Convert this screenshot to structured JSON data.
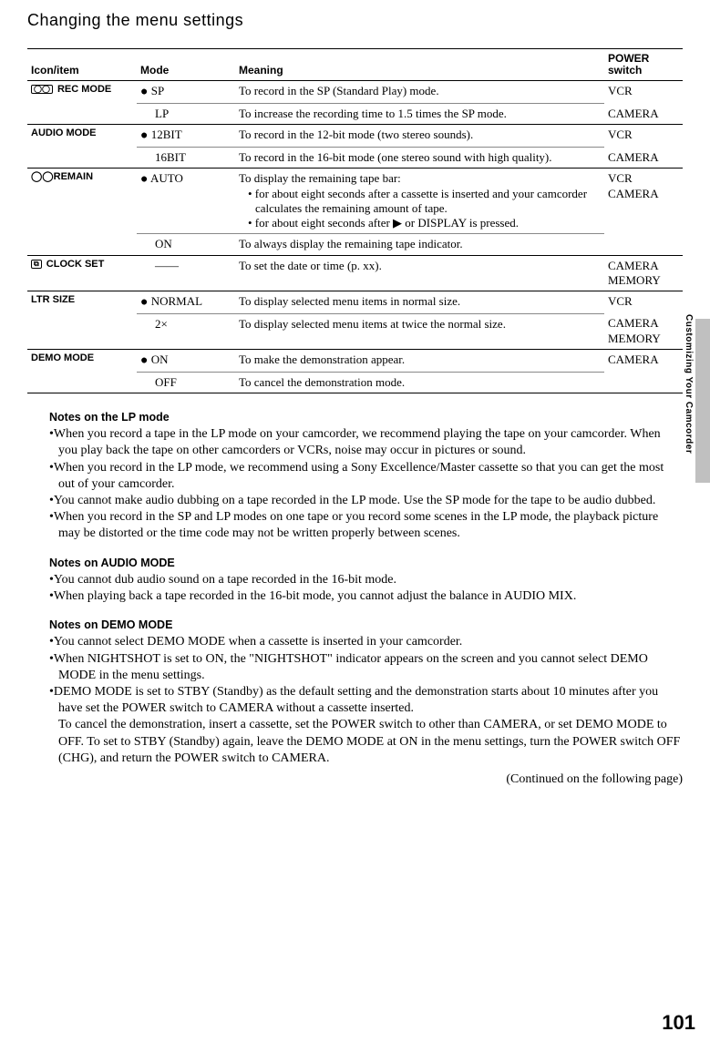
{
  "pageTitle": "Changing the menu settings",
  "sideText": "Customizing Your Camcorder",
  "pageNumber": "101",
  "continued": "(Continued on the following page)",
  "headers": {
    "iconItem": "Icon/item",
    "mode": "Mode",
    "meaning": "Meaning",
    "power1": "POWER",
    "power2": "switch"
  },
  "rows": [
    {
      "item": "REC MODE",
      "icon": "◯◯",
      "mode": "● SP",
      "meaning": "To record in the SP (Standard Play) mode.",
      "power": "VCR",
      "borders": [
        "none",
        "sub",
        "sub",
        "none"
      ]
    },
    {
      "item": "",
      "mode": "LP",
      "meaning": "To increase the recording time to 1.5 times the SP mode.",
      "power": "CAMERA",
      "borders": [
        "item",
        "item",
        "item",
        "item"
      ]
    },
    {
      "item": "AUDIO MODE",
      "mode": "● 12BIT",
      "meaning": "To record in the 12-bit mode (two stereo sounds).",
      "power": "VCR",
      "borders": [
        "none",
        "sub",
        "sub",
        "none"
      ]
    },
    {
      "item": "",
      "mode": "16BIT",
      "meaning": "To record in the 16-bit mode (one stereo sound with high quality).",
      "power": "CAMERA",
      "borders": [
        "item",
        "item",
        "item",
        "item"
      ]
    },
    {
      "item": "◯◯REMAIN",
      "mode": "● AUTO",
      "meaningList": [
        "To display the remaining tape bar:",
        "• for about eight seconds after a cassette is inserted and your camcorder calculates the remaining amount of tape.",
        "• for about eight seconds after ▶ or DISPLAY is pressed."
      ],
      "power": "VCR\nCAMERA",
      "borders": [
        "none",
        "sub",
        "sub",
        "none"
      ]
    },
    {
      "item": "",
      "mode": "ON",
      "meaning": "To always display the remaining tape indicator.",
      "power": "",
      "borders": [
        "thick",
        "thick",
        "thick",
        "thick"
      ]
    },
    {
      "item": "CLOCK SET",
      "icon": "⧉",
      "mode": "——",
      "meaning": "To set the date or time (p. xx).",
      "power": "CAMERA\nMEMORY",
      "borders": [
        "item",
        "item",
        "item",
        "item"
      ]
    },
    {
      "item": "LTR SIZE",
      "mode": "● NORMAL",
      "meaning": "To display selected menu items in normal size.",
      "power": "VCR",
      "borders": [
        "none",
        "sub",
        "sub",
        "none"
      ]
    },
    {
      "item": "",
      "mode": "2×",
      "meaning": "To display selected menu items at twice the normal size.",
      "power": "CAMERA\nMEMORY",
      "borders": [
        "item",
        "item",
        "item",
        "item"
      ]
    },
    {
      "item": "DEMO MODE",
      "mode": "● ON",
      "meaning": "To make the demonstration appear.",
      "power": "CAMERA",
      "borders": [
        "none",
        "sub",
        "sub",
        "none"
      ]
    },
    {
      "item": "",
      "mode": "OFF",
      "meaning": "To cancel the demonstration mode.",
      "power": "",
      "borders": [
        "thick",
        "thick",
        "thick",
        "thick"
      ]
    }
  ],
  "noteSections": [
    {
      "heading": "Notes on the LP mode",
      "items": [
        "•When you record a tape in the LP mode on your camcorder, we recommend playing the tape on your camcorder. When you play back the tape on other camcorders or VCRs, noise may occur in pictures or sound.",
        "•When you record in the LP mode, we recommend using a Sony Excellence/Master cassette so that you can get the most out of your camcorder.",
        "•You cannot make audio dubbing on a tape recorded in the LP mode. Use the SP mode for the tape to be audio dubbed.",
        "•When you record in the SP and LP modes on one tape or you record some scenes in the LP mode, the playback picture may be distorted or the time code may not be written properly between scenes."
      ]
    },
    {
      "heading": "Notes on AUDIO MODE",
      "items": [
        "•You cannot dub audio sound on a tape recorded in the 16-bit mode.",
        "•When playing back a tape recorded in the 16-bit mode, you cannot adjust the balance in AUDIO MIX."
      ]
    },
    {
      "heading": "Notes on DEMO MODE",
      "items": [
        "•You cannot select DEMO MODE when a cassette is inserted in your camcorder.",
        "•When NIGHTSHOT is set to ON, the \"NIGHTSHOT\" indicator appears on the screen and you cannot select DEMO MODE in the menu settings.",
        "•DEMO MODE is set to STBY (Standby) as the default setting and the demonstration starts about 10 minutes after you have set the POWER switch to CAMERA without a cassette inserted.\nTo cancel the demonstration, insert a cassette, set the POWER switch to other than CAMERA, or set DEMO MODE to OFF. To set to STBY (Standby) again, leave the DEMO MODE at ON in the menu settings, turn the POWER switch OFF (CHG), and return the POWER switch to CAMERA."
      ]
    }
  ]
}
